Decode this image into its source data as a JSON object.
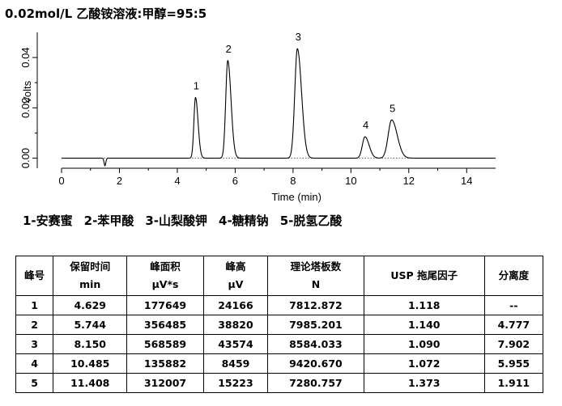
{
  "title": "0.02mol/L 乙酸铵溶液:甲醇=95:5",
  "legend": [
    "1-安赛蜜",
    "2-苯甲酸",
    "3-山梨酸钾",
    "4-糖精钠",
    "5-脱氢乙酸"
  ],
  "chart_data": {
    "type": "line",
    "xlabel": "Time (min)",
    "ylabel": "Volts",
    "xlim": [
      0,
      15
    ],
    "ylim": [
      -0.004,
      0.05
    ],
    "xticks": [
      0,
      2,
      4,
      6,
      8,
      10,
      12,
      14
    ],
    "yticks": [
      0.0,
      0.02,
      0.04
    ],
    "ytick_labels": [
      "0.00",
      "0.02",
      "0.04"
    ],
    "grid": false,
    "peaks": [
      {
        "label": "1",
        "time": 4.629,
        "height": 0.0241
      },
      {
        "label": "2",
        "time": 5.744,
        "height": 0.0388
      },
      {
        "label": "3",
        "time": 8.15,
        "height": 0.0435
      },
      {
        "label": "4",
        "time": 10.485,
        "height": 0.0085
      },
      {
        "label": "5",
        "time": 11.408,
        "height": 0.0152
      }
    ],
    "baseline_dip": {
      "time": 1.5,
      "depth": -0.003
    }
  },
  "table": {
    "headers": [
      [
        "峰号"
      ],
      [
        "保留时间",
        "min"
      ],
      [
        "峰面积",
        "μV*s"
      ],
      [
        "峰高",
        "μV"
      ],
      [
        "理论塔板数",
        "N"
      ],
      [
        "USP 拖尾因子"
      ],
      [
        "分离度"
      ]
    ],
    "rows": [
      [
        "1",
        "4.629",
        "177649",
        "24166",
        "7812.872",
        "1.118",
        "--"
      ],
      [
        "2",
        "5.744",
        "356485",
        "38820",
        "7985.201",
        "1.140",
        "4.777"
      ],
      [
        "3",
        "8.150",
        "568589",
        "43574",
        "8584.033",
        "1.090",
        "7.902"
      ],
      [
        "4",
        "10.485",
        "135882",
        "8459",
        "9420.670",
        "1.072",
        "5.955"
      ],
      [
        "5",
        "11.408",
        "312007",
        "15223",
        "7280.757",
        "1.373",
        "1.911"
      ]
    ]
  }
}
